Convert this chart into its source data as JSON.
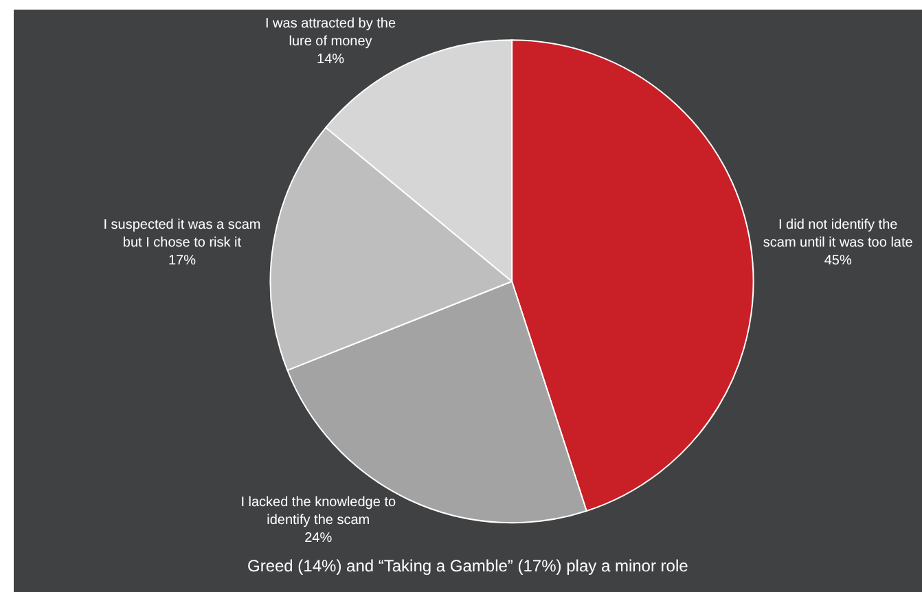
{
  "chart_data": {
    "type": "pie",
    "categories": [
      "I did not identify the scam until it was too late",
      "I lacked the knowledge to identify the scam",
      "I suspected it was a scam but I chose to risk it",
      "I was attracted by the lure of money"
    ],
    "values": [
      45,
      24,
      17,
      14
    ],
    "value_labels": [
      "45%",
      "24%",
      "17%",
      "14%"
    ],
    "colors": [
      "#c91f26",
      "#a3a3a3",
      "#bebebe",
      "#d6d6d6"
    ],
    "legend": false,
    "annotations": [
      "Greed (14%) and “Taking a Gamble” (17%) play a minor role"
    ]
  }
}
